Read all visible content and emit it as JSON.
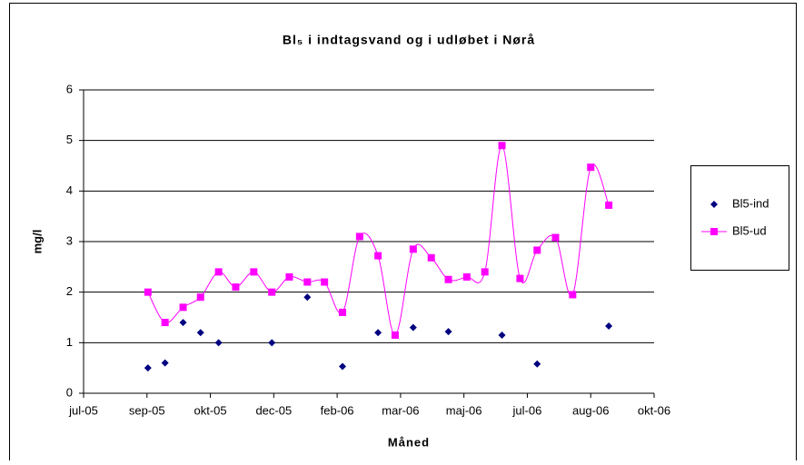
{
  "chart_data": {
    "type": "scatter-line",
    "title": "Bl₅ i indtagsvand og i udløbet i Nørå",
    "x_label": "Måned",
    "y_label": "mg/l",
    "xlim": [
      0,
      18
    ],
    "xticks": [
      {
        "value": 0,
        "label": "jul-05"
      },
      {
        "value": 2,
        "label": "sep-05"
      },
      {
        "value": 4,
        "label": "okt-05"
      },
      {
        "value": 6,
        "label": "dec-05"
      },
      {
        "value": 8,
        "label": "feb-06"
      },
      {
        "value": 10,
        "label": "mar-06"
      },
      {
        "value": 12,
        "label": "maj-06"
      },
      {
        "value": 14,
        "label": "jul-06"
      },
      {
        "value": 16,
        "label": "aug-06"
      },
      {
        "value": 18,
        "label": "okt-06"
      }
    ],
    "ylim": [
      0,
      6
    ],
    "yticks": [
      0,
      1,
      2,
      3,
      4,
      5,
      6
    ],
    "grid": true,
    "legend": "right",
    "series": [
      {
        "name": "Bl5-ind",
        "color": "#000080",
        "marker": "diamond",
        "line": false,
        "x": [
          2.03,
          2.57,
          3.14,
          3.69,
          4.26,
          5.94,
          7.06,
          8.17,
          9.29,
          10.4,
          11.51,
          13.2,
          14.31,
          16.57
        ],
        "values": [
          0.5,
          0.6,
          1.4,
          1.2,
          1.0,
          1.0,
          1.9,
          0.53,
          1.2,
          1.3,
          1.22,
          1.15,
          0.58,
          1.33
        ]
      },
      {
        "name": "Bl5-ud",
        "color": "#ff00ff",
        "marker": "square",
        "line": true,
        "x": [
          2.03,
          2.57,
          3.14,
          3.69,
          4.26,
          4.8,
          5.37,
          5.94,
          6.49,
          7.06,
          7.6,
          8.17,
          8.71,
          9.29,
          9.83,
          10.4,
          10.97,
          11.51,
          12.09,
          12.66,
          13.2,
          13.77,
          14.31,
          14.89,
          15.43,
          16,
          16.57
        ],
        "values": [
          2.0,
          1.4,
          1.7,
          1.9,
          2.4,
          2.1,
          2.4,
          2.0,
          2.3,
          2.2,
          2.2,
          1.6,
          3.1,
          2.72,
          1.15,
          2.85,
          2.68,
          2.25,
          2.3,
          2.4,
          4.9,
          2.27,
          2.83,
          3.08,
          1.95,
          4.47,
          3.72
        ]
      }
    ]
  }
}
